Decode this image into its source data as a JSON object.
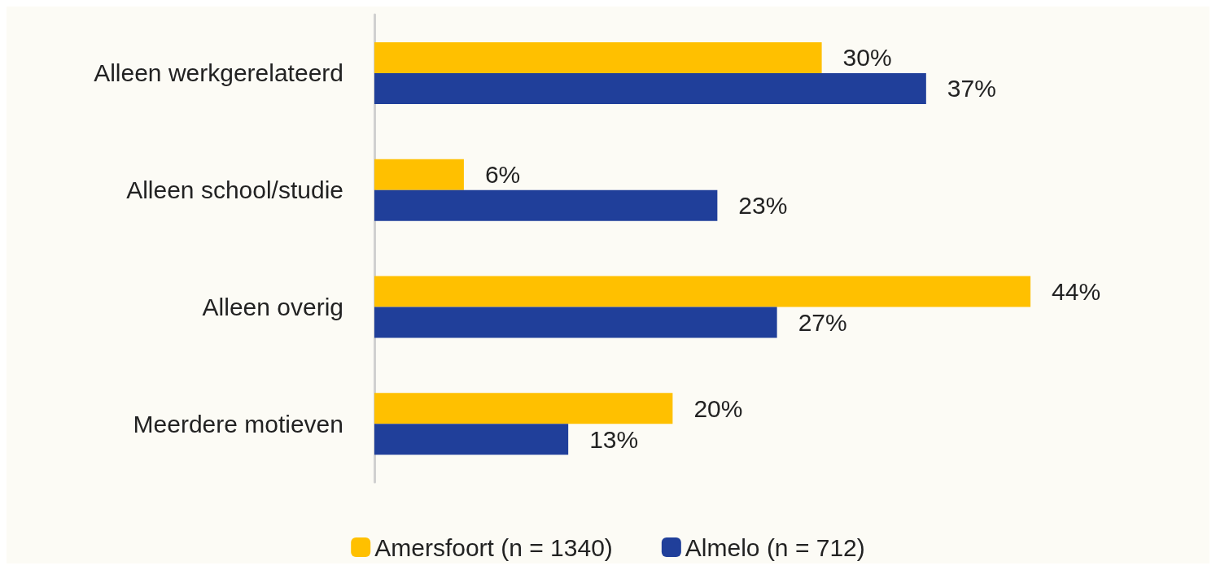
{
  "chart_data": {
    "type": "bar",
    "orientation": "horizontal",
    "categories": [
      "Alleen werkgerelateerd",
      "Alleen school/studie",
      "Alleen overig",
      "Meerdere motieven"
    ],
    "series": [
      {
        "name": "Amersfoort (n = 1340)",
        "color": "#ffc000",
        "values": [
          30,
          6,
          44,
          20
        ],
        "value_labels": [
          "30%",
          "6%",
          "44%",
          "20%"
        ]
      },
      {
        "name": "Almelo (n = 712)",
        "color": "#203f9a",
        "values": [
          37,
          23,
          27,
          13
        ],
        "value_labels": [
          "37%",
          "23%",
          "27%",
          "13%"
        ]
      }
    ],
    "legend": "bottom",
    "grid": false
  }
}
